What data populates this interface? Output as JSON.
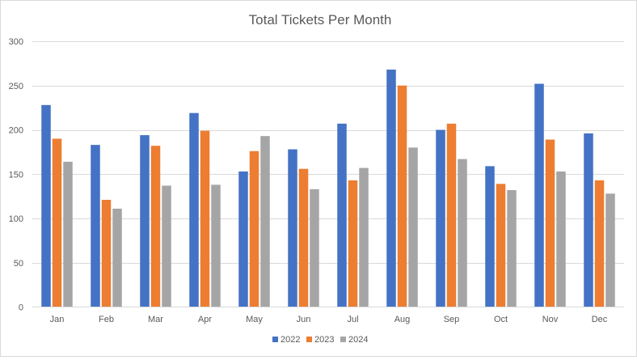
{
  "chart_data": {
    "type": "bar",
    "title": "Total Tickets Per Month",
    "xlabel": "",
    "ylabel": "",
    "ylim": [
      0,
      300
    ],
    "yticks": [
      0,
      50,
      100,
      150,
      200,
      250,
      300
    ],
    "grid": true,
    "legend_position": "bottom",
    "categories": [
      "Jan",
      "Feb",
      "Mar",
      "Apr",
      "May",
      "Jun",
      "Jul",
      "Aug",
      "Sep",
      "Oct",
      "Nov",
      "Dec"
    ],
    "series": [
      {
        "name": "2022",
        "color": "#4472c4",
        "values": [
          228,
          183,
          194,
          219,
          153,
          178,
          207,
          268,
          200,
          159,
          252,
          196
        ]
      },
      {
        "name": "2023",
        "color": "#ed7d31",
        "values": [
          190,
          121,
          182,
          199,
          176,
          156,
          143,
          250,
          207,
          139,
          189,
          143
        ]
      },
      {
        "name": "2024",
        "color": "#a5a5a5",
        "values": [
          164,
          111,
          137,
          138,
          193,
          133,
          157,
          180,
          167,
          132,
          153,
          128
        ]
      }
    ]
  }
}
